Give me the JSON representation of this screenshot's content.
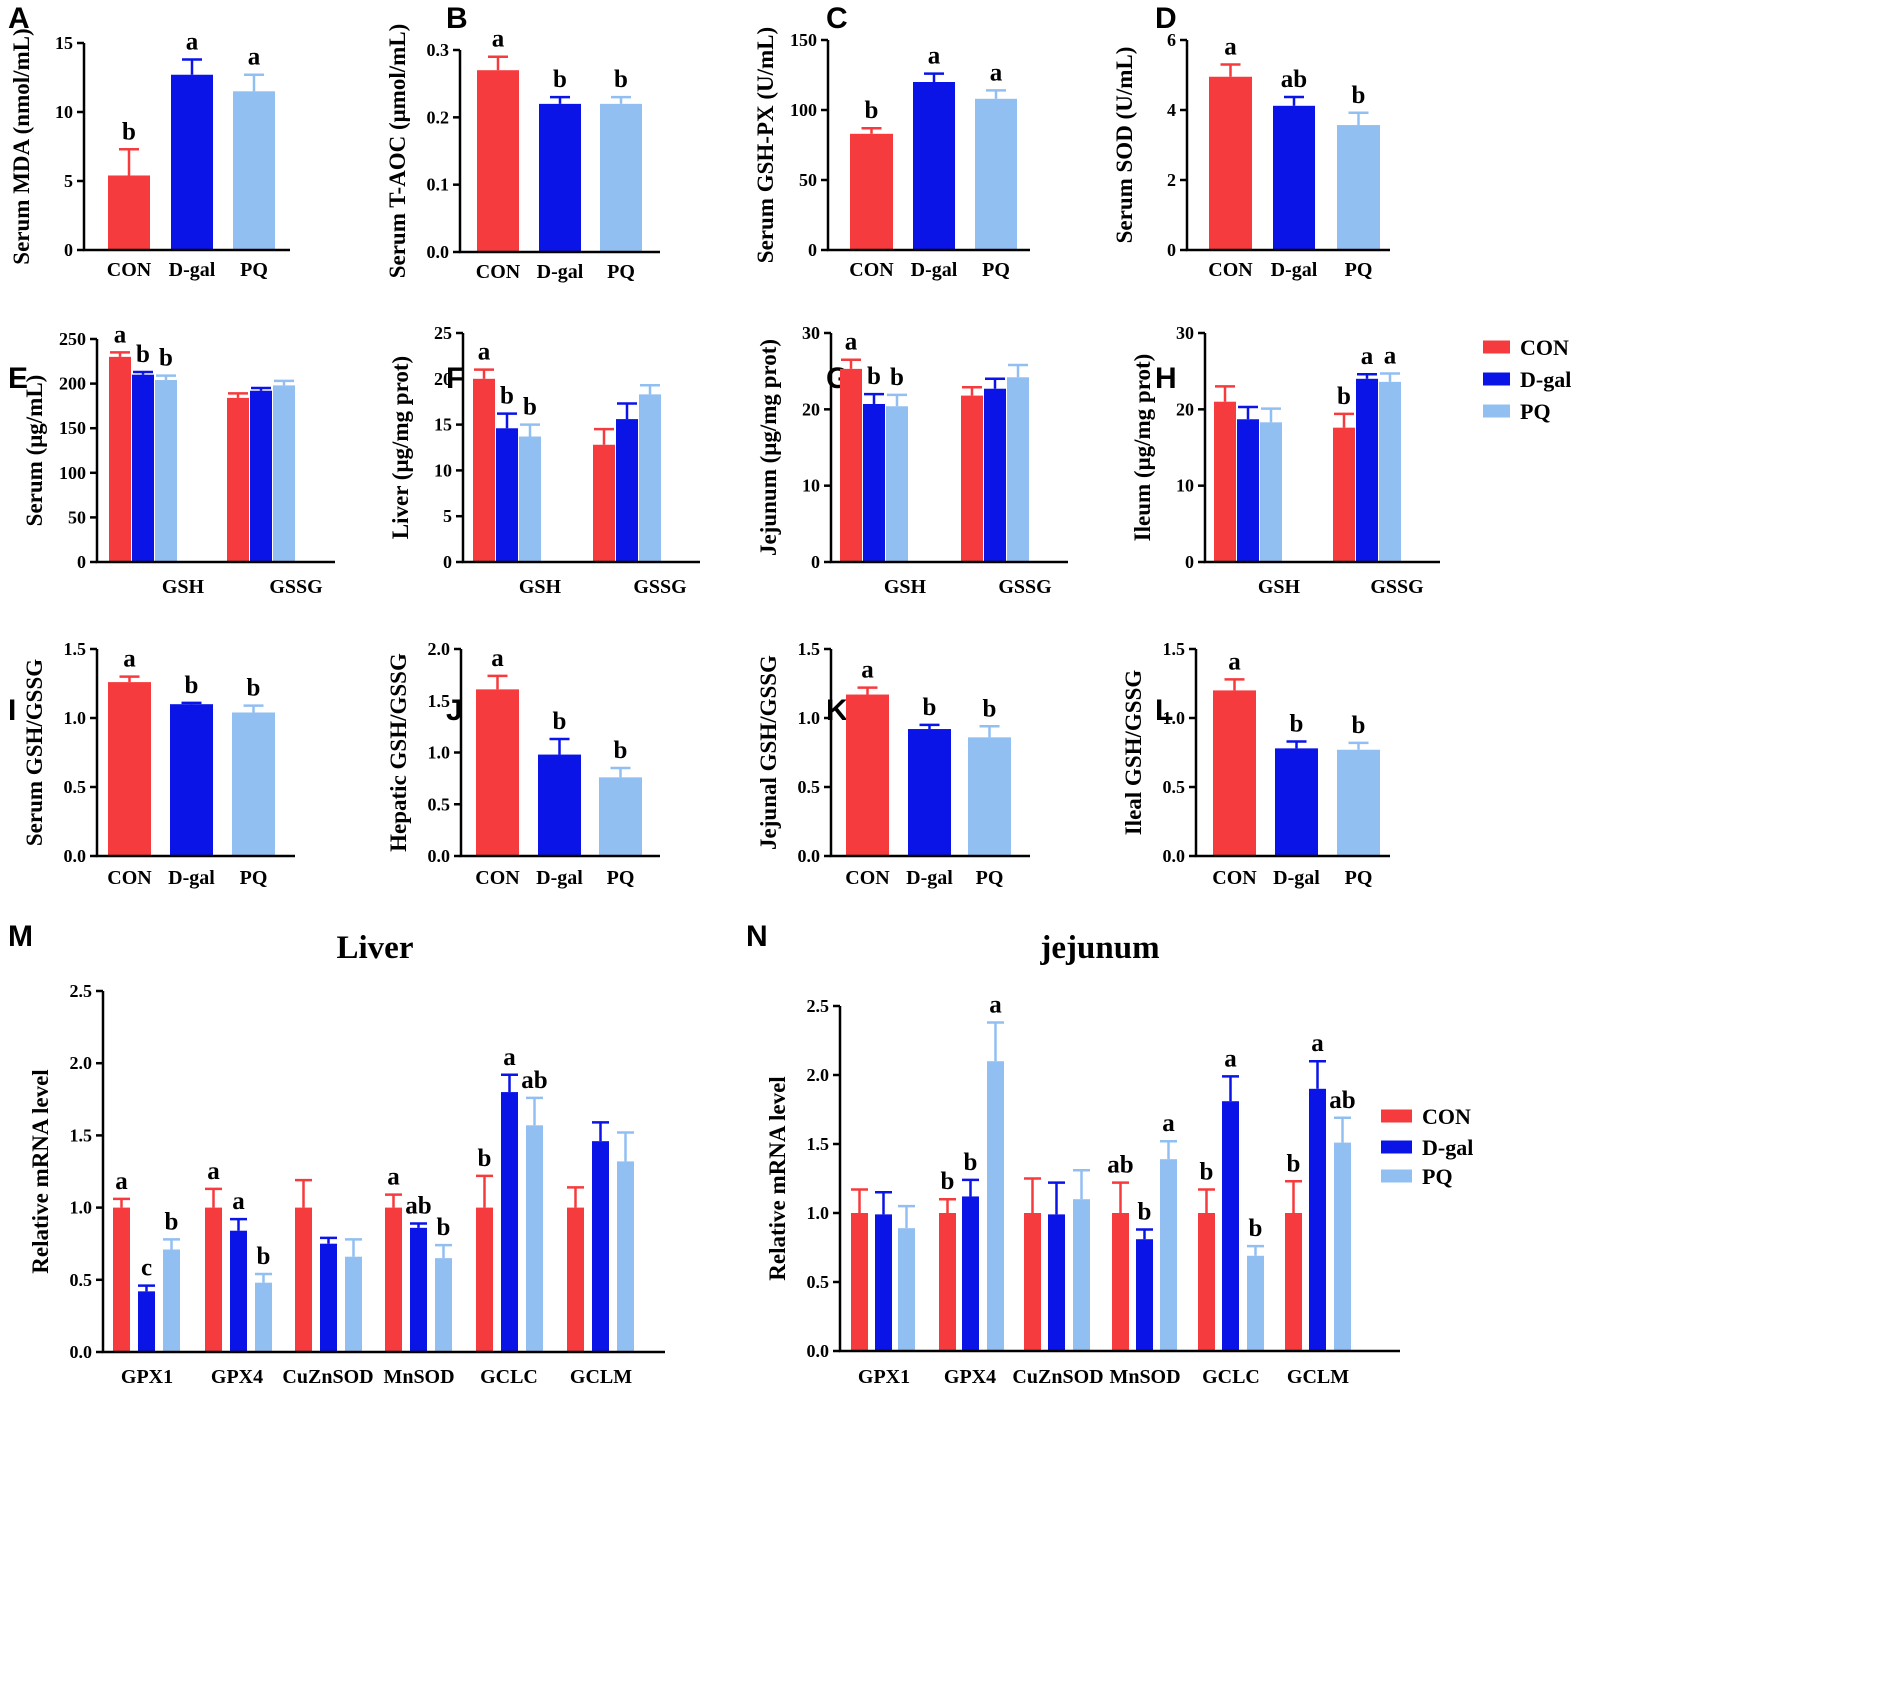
{
  "colors": {
    "CON": "#f53b3d",
    "D-gal": "#0a14e6",
    "PQ": "#92bff2"
  },
  "legends": [
    {
      "entries": [
        "CON",
        "D-gal",
        "PQ"
      ]
    },
    {
      "entries": [
        "CON",
        "D-gal",
        "PQ"
      ]
    }
  ],
  "chart_data": [
    {
      "id": "A",
      "label": "A",
      "type": "bar",
      "title": "",
      "ylabel": "Serum MDA (nmol/mL)",
      "ylim": [
        0,
        15
      ],
      "yticks": [
        "0",
        "5",
        "10",
        "15"
      ],
      "categories": [
        "CON",
        "D-gal",
        "PQ"
      ],
      "values": [
        5.4,
        12.7,
        11.5
      ],
      "errors": [
        1.9,
        1.1,
        1.2
      ],
      "sig": [
        "b",
        "a",
        "a"
      ]
    },
    {
      "id": "B",
      "label": "B",
      "type": "bar",
      "title": "",
      "ylabel": "Serum T-AOC (μmol/mL)",
      "ylim": [
        0,
        0.3
      ],
      "yticks": [
        "0.0",
        "0.1",
        "0.2",
        "0.3"
      ],
      "categories": [
        "CON",
        "D-gal",
        "PQ"
      ],
      "values": [
        0.27,
        0.22,
        0.22
      ],
      "errors": [
        0.02,
        0.01,
        0.01
      ],
      "sig": [
        "a",
        "b",
        "b"
      ]
    },
    {
      "id": "C",
      "label": "C",
      "type": "bar",
      "title": "",
      "ylabel": "Serum GSH-PX (U/mL)",
      "ylim": [
        0,
        150
      ],
      "yticks": [
        "0",
        "50",
        "100",
        "150"
      ],
      "categories": [
        "CON",
        "D-gal",
        "PQ"
      ],
      "values": [
        83,
        120,
        108
      ],
      "errors": [
        4,
        6,
        6
      ],
      "sig": [
        "b",
        "a",
        "a"
      ]
    },
    {
      "id": "D",
      "label": "D",
      "type": "bar",
      "title": "",
      "ylabel": "Serum SOD (U/mL)",
      "ylim": [
        0,
        6
      ],
      "yticks": [
        "0",
        "2",
        "4",
        "6"
      ],
      "categories": [
        "CON",
        "D-gal",
        "PQ"
      ],
      "values": [
        4.95,
        4.12,
        3.57
      ],
      "errors": [
        0.35,
        0.25,
        0.35
      ],
      "sig": [
        "a",
        "ab",
        "b"
      ]
    },
    {
      "id": "E",
      "label": "E",
      "type": "bar",
      "title": "",
      "ylabel": "Serum (μg/mL)",
      "ylim": [
        0,
        250
      ],
      "yticks": [
        "0",
        "50",
        "100",
        "150",
        "200",
        "250"
      ],
      "categories": [
        "GSH",
        "GSSG"
      ],
      "series": [
        {
          "name": "CON",
          "values": [
            230,
            184
          ],
          "errors": [
            5,
            5
          ],
          "sig": [
            "a",
            ""
          ]
        },
        {
          "name": "D-gal",
          "values": [
            210,
            192
          ],
          "errors": [
            3,
            3
          ],
          "sig": [
            "b",
            ""
          ]
        },
        {
          "name": "PQ",
          "values": [
            204,
            198
          ],
          "errors": [
            5,
            5
          ],
          "sig": [
            "b",
            ""
          ]
        }
      ]
    },
    {
      "id": "F",
      "label": "F",
      "type": "bar",
      "title": "",
      "ylabel": "Liver (μg/mg prot)",
      "ylim": [
        0,
        25
      ],
      "yticks": [
        "0",
        "5",
        "10",
        "15",
        "20",
        "25"
      ],
      "categories": [
        "GSH",
        "GSSG"
      ],
      "series": [
        {
          "name": "CON",
          "values": [
            20.0,
            12.8
          ],
          "errors": [
            1.0,
            1.7
          ],
          "sig": [
            "a",
            ""
          ]
        },
        {
          "name": "D-gal",
          "values": [
            14.6,
            15.6
          ],
          "errors": [
            1.6,
            1.7
          ],
          "sig": [
            "b",
            ""
          ]
        },
        {
          "name": "PQ",
          "values": [
            13.7,
            18.3
          ],
          "errors": [
            1.3,
            1.0
          ],
          "sig": [
            "b",
            ""
          ]
        }
      ]
    },
    {
      "id": "G",
      "label": "G",
      "type": "bar",
      "title": "",
      "ylabel": "Jejunum (μg/mg prot)",
      "ylim": [
        0,
        30
      ],
      "yticks": [
        "0",
        "10",
        "20",
        "30"
      ],
      "categories": [
        "GSH",
        "GSSG"
      ],
      "series": [
        {
          "name": "CON",
          "values": [
            25.3,
            21.8
          ],
          "errors": [
            1.2,
            1.1
          ],
          "sig": [
            "a",
            ""
          ]
        },
        {
          "name": "D-gal",
          "values": [
            20.7,
            22.7
          ],
          "errors": [
            1.3,
            1.3
          ],
          "sig": [
            "b",
            ""
          ]
        },
        {
          "name": "PQ",
          "values": [
            20.4,
            24.2
          ],
          "errors": [
            1.5,
            1.6
          ],
          "sig": [
            "b",
            ""
          ]
        }
      ]
    },
    {
      "id": "H",
      "label": "H",
      "type": "bar",
      "title": "",
      "ylabel": "Ileum (μg/mg prot)",
      "ylim": [
        0,
        30
      ],
      "yticks": [
        "0",
        "10",
        "20",
        "30"
      ],
      "categories": [
        "GSH",
        "GSSG"
      ],
      "series": [
        {
          "name": "CON",
          "values": [
            21.0,
            17.6
          ],
          "errors": [
            2.0,
            1.8
          ],
          "sig": [
            "",
            "b"
          ]
        },
        {
          "name": "D-gal",
          "values": [
            18.7,
            24.0
          ],
          "errors": [
            1.6,
            0.6
          ],
          "sig": [
            "",
            "a"
          ]
        },
        {
          "name": "PQ",
          "values": [
            18.3,
            23.6
          ],
          "errors": [
            1.8,
            1.1
          ],
          "sig": [
            "",
            "a"
          ]
        }
      ]
    },
    {
      "id": "I",
      "label": "I",
      "type": "bar",
      "title": "",
      "ylabel": "Serum GSH/GSSG",
      "ylim": [
        0,
        1.5
      ],
      "yticks": [
        "0.0",
        "0.5",
        "1.0",
        "1.5"
      ],
      "categories": [
        "CON",
        "D-gal",
        "PQ"
      ],
      "values": [
        1.26,
        1.1,
        1.04
      ],
      "errors": [
        0.04,
        0.01,
        0.05
      ],
      "sig": [
        "a",
        "b",
        "b"
      ]
    },
    {
      "id": "J",
      "label": "J",
      "type": "bar",
      "title": "",
      "ylabel": "Hepatic GSH/GSSG",
      "ylim": [
        0,
        2.0
      ],
      "yticks": [
        "0.0",
        "0.5",
        "1.0",
        "1.5",
        "2.0"
      ],
      "categories": [
        "CON",
        "D-gal",
        "PQ"
      ],
      "values": [
        1.61,
        0.98,
        0.76
      ],
      "errors": [
        0.13,
        0.15,
        0.09
      ],
      "sig": [
        "a",
        "b",
        "b"
      ]
    },
    {
      "id": "K",
      "label": "K",
      "type": "bar",
      "title": "",
      "ylabel": "Jejunal GSH/GSSG",
      "ylim": [
        0,
        1.5
      ],
      "yticks": [
        "0.0",
        "0.5",
        "1.0",
        "1.5"
      ],
      "categories": [
        "CON",
        "D-gal",
        "PQ"
      ],
      "values": [
        1.17,
        0.92,
        0.86
      ],
      "errors": [
        0.05,
        0.03,
        0.08
      ],
      "sig": [
        "a",
        "b",
        "b"
      ]
    },
    {
      "id": "L",
      "label": "L",
      "type": "bar",
      "title": "",
      "ylabel": "Ileal  GSH/GSSG",
      "ylim": [
        0,
        1.5
      ],
      "yticks": [
        "0.0",
        "0.5",
        "1.0",
        "1.5"
      ],
      "categories": [
        "CON",
        "D-gal",
        "PQ"
      ],
      "values": [
        1.2,
        0.78,
        0.77
      ],
      "errors": [
        0.08,
        0.05,
        0.05
      ],
      "sig": [
        "a",
        "b",
        "b"
      ]
    },
    {
      "id": "M",
      "label": "M",
      "type": "bar",
      "title": "Liver",
      "ylabel": "Relative mRNA level",
      "ylim": [
        0,
        2.5
      ],
      "yticks": [
        "0.0",
        "0.5",
        "1.0",
        "1.5",
        "2.0",
        "2.5"
      ],
      "categories": [
        "GPX1",
        "GPX4",
        "CuZnSOD",
        "MnSOD",
        "GCLC",
        "GCLM"
      ],
      "series": [
        {
          "name": "CON",
          "values": [
            1.0,
            1.0,
            1.0,
            1.0,
            1.0,
            1.0
          ],
          "errors": [
            0.06,
            0.13,
            0.19,
            0.09,
            0.22,
            0.14
          ],
          "sig": [
            "a",
            "a",
            "",
            "a",
            "b",
            ""
          ]
        },
        {
          "name": "D-gal",
          "values": [
            0.42,
            0.84,
            0.75,
            0.86,
            1.8,
            1.46
          ],
          "errors": [
            0.04,
            0.08,
            0.04,
            0.03,
            0.12,
            0.13
          ],
          "sig": [
            "c",
            "a",
            "",
            "ab",
            "a",
            ""
          ]
        },
        {
          "name": "PQ",
          "values": [
            0.71,
            0.48,
            0.66,
            0.65,
            1.57,
            1.32
          ],
          "errors": [
            0.07,
            0.06,
            0.12,
            0.09,
            0.19,
            0.2
          ],
          "sig": [
            "b",
            "b",
            "",
            "b",
            "ab",
            ""
          ]
        }
      ]
    },
    {
      "id": "N",
      "label": "N",
      "type": "bar",
      "title": "jejunum",
      "ylabel": "Relative mRNA level",
      "ylim": [
        0,
        2.5
      ],
      "yticks": [
        "0.0",
        "0.5",
        "1.0",
        "1.5",
        "2.0",
        "2.5"
      ],
      "categories": [
        "GPX1",
        "GPX4",
        "CuZnSOD",
        "MnSOD",
        "GCLC",
        "GCLM"
      ],
      "series": [
        {
          "name": "CON",
          "values": [
            1.0,
            1.0,
            1.0,
            1.0,
            1.0,
            1.0
          ],
          "errors": [
            0.17,
            0.1,
            0.25,
            0.22,
            0.17,
            0.23
          ],
          "sig": [
            "",
            "b",
            "",
            "ab",
            "b",
            "b"
          ]
        },
        {
          "name": "D-gal",
          "values": [
            0.99,
            1.12,
            0.99,
            0.81,
            1.81,
            1.9
          ],
          "errors": [
            0.16,
            0.12,
            0.23,
            0.07,
            0.18,
            0.2
          ],
          "sig": [
            "",
            "b",
            "",
            "b",
            "a",
            "a"
          ]
        },
        {
          "name": "PQ",
          "values": [
            0.89,
            2.1,
            1.1,
            1.39,
            0.69,
            1.51
          ],
          "errors": [
            0.16,
            0.28,
            0.21,
            0.13,
            0.07,
            0.18
          ],
          "sig": [
            "",
            "a",
            "",
            "a",
            "b",
            "ab"
          ]
        }
      ]
    }
  ]
}
